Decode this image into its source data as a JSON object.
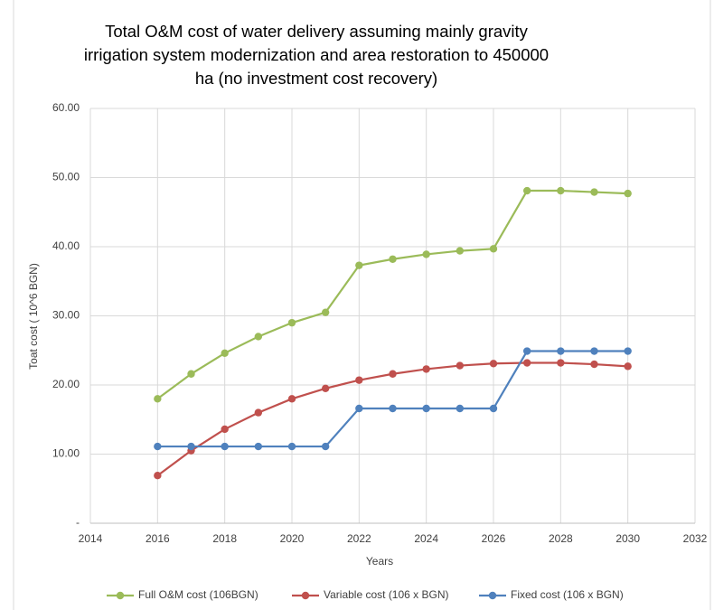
{
  "chart_data": {
    "type": "line",
    "title": "Total O&M cost of water delivery assuming mainly gravity irrigation system modernization and area restoration to 450000 ha (no investment cost recovery)",
    "x_label": "Years",
    "y_label": "Toat cost ( 10^6 BGN)",
    "x": [
      2016,
      2017,
      2018,
      2019,
      2020,
      2021,
      2022,
      2023,
      2024,
      2025,
      2026,
      2027,
      2028,
      2029,
      2030
    ],
    "series": [
      {
        "name": "Full O&M cost (106BGN)",
        "color": "#9bbb59",
        "values": [
          18.0,
          21.6,
          24.6,
          27.0,
          29.0,
          30.5,
          37.3,
          38.2,
          38.9,
          39.4,
          39.7,
          48.1,
          48.1,
          47.9,
          47.7
        ]
      },
      {
        "name": "Variable cost (106 x BGN)",
        "color": "#c0504d",
        "values": [
          6.9,
          10.5,
          13.6,
          16.0,
          18.0,
          19.5,
          20.7,
          21.6,
          22.3,
          22.8,
          23.1,
          23.2,
          23.2,
          23.0,
          22.7
        ]
      },
      {
        "name": "Fixed cost (106 x BGN)",
        "color": "#4f81bd",
        "values": [
          11.1,
          11.1,
          11.1,
          11.1,
          11.1,
          11.1,
          16.6,
          16.6,
          16.6,
          16.6,
          16.6,
          24.9,
          24.9,
          24.9,
          24.9
        ]
      }
    ],
    "xlim": [
      2014,
      2032
    ],
    "xticks": [
      2014,
      2016,
      2018,
      2020,
      2022,
      2024,
      2026,
      2028,
      2030,
      2032
    ],
    "ylim": [
      0,
      60
    ],
    "yticks": [
      {
        "value": 0,
        "label": "-"
      },
      {
        "value": 10,
        "label": "10.00"
      },
      {
        "value": 20,
        "label": "20.00"
      },
      {
        "value": 30,
        "label": "30.00"
      },
      {
        "value": 40,
        "label": "40.00"
      },
      {
        "value": 50,
        "label": "50.00"
      },
      {
        "value": 60,
        "label": "60.00"
      }
    ],
    "grid": true,
    "legend": "bottom"
  }
}
